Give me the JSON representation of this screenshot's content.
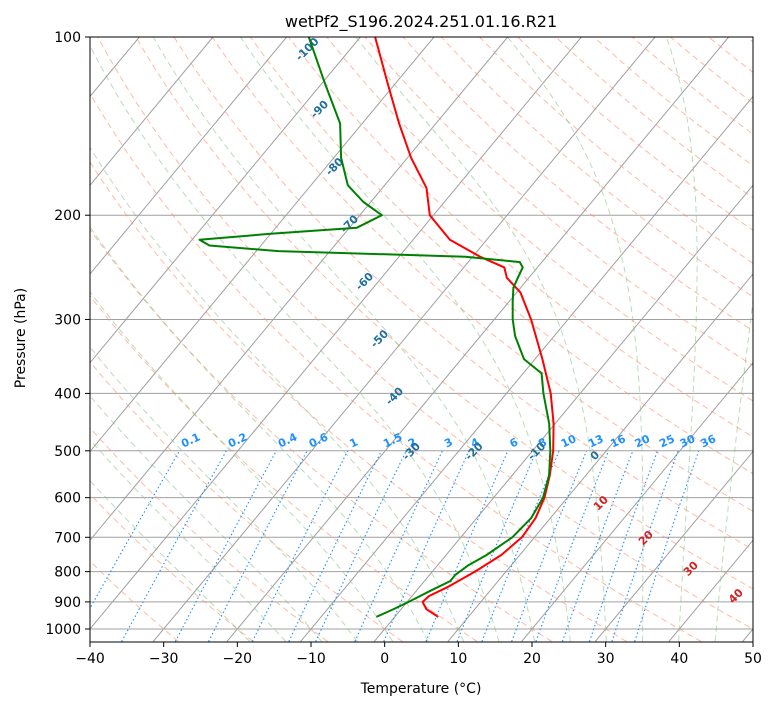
{
  "chart_data": {
    "type": "line",
    "diagram": "skew-t log-p",
    "title": "wetPf2_S196.2024.251.01.16.R21",
    "xlabel": "Temperature (°C)",
    "ylabel": "Pressure (hPa)",
    "xlim": [
      -40,
      50
    ],
    "ylim": [
      1050,
      100
    ],
    "y_scale": "log",
    "grid": true,
    "x_ticks": [
      -40,
      -30,
      -20,
      -10,
      0,
      10,
      20,
      30,
      40,
      50
    ],
    "y_ticks": [
      1000,
      900,
      800,
      700,
      600,
      500,
      400,
      300,
      200,
      100
    ],
    "colors": {
      "temperature": "#ff0000",
      "dewpoint": "#008000",
      "isotherms": "#a0a0a0",
      "dry_adiabats": "#ff8c69",
      "moist_adiabats": "#80c080",
      "mixing_ratio": "#1e90ff",
      "thetae_labels": "#1f6f9f",
      "thetaw_labels": "#d42020"
    },
    "series": [
      {
        "name": "",
        "role": "temperature",
        "points": [
          [
            954,
            5.9
          ],
          [
            925,
            3.4
          ],
          [
            900,
            2.1
          ],
          [
            880,
            2.3
          ],
          [
            850,
            3.8
          ],
          [
            800,
            5.8
          ],
          [
            750,
            7.5
          ],
          [
            700,
            8.3
          ],
          [
            650,
            8.0
          ],
          [
            600,
            6.9
          ],
          [
            550,
            5.1
          ],
          [
            500,
            2.8
          ],
          [
            450,
            -0.2
          ],
          [
            400,
            -4.0
          ],
          [
            350,
            -9.0
          ],
          [
            300,
            -15.0
          ],
          [
            270,
            -19.5
          ],
          [
            255,
            -23.0
          ],
          [
            245,
            -24.5
          ],
          [
            235,
            -29.0
          ],
          [
            220,
            -35.0
          ],
          [
            200,
            -40.5
          ],
          [
            180,
            -44.0
          ],
          [
            160,
            -49.5
          ],
          [
            140,
            -55.0
          ],
          [
            120,
            -61.0
          ],
          [
            100,
            -68.0
          ]
        ]
      },
      {
        "name": "",
        "role": "dewpoint",
        "points": [
          [
            954,
            -2.5
          ],
          [
            925,
            -1.0
          ],
          [
            900,
            0.2
          ],
          [
            860,
            2.0
          ],
          [
            830,
            3.5
          ],
          [
            810,
            3.5
          ],
          [
            780,
            4.2
          ],
          [
            750,
            5.5
          ],
          [
            700,
            7.0
          ],
          [
            650,
            7.4
          ],
          [
            600,
            6.7
          ],
          [
            550,
            5.0
          ],
          [
            500,
            2.4
          ],
          [
            450,
            -0.8
          ],
          [
            400,
            -5.0
          ],
          [
            370,
            -7.5
          ],
          [
            350,
            -11.5
          ],
          [
            320,
            -15.3
          ],
          [
            300,
            -17.5
          ],
          [
            280,
            -19.5
          ],
          [
            265,
            -21.0
          ],
          [
            255,
            -21.5
          ],
          [
            245,
            -22.0
          ],
          [
            240,
            -23.0
          ],
          [
            235,
            -31.0
          ],
          [
            230,
            -57.0
          ],
          [
            225,
            -67.0
          ],
          [
            220,
            -69.0
          ],
          [
            215,
            -60.0
          ],
          [
            210,
            -49.0
          ],
          [
            200,
            -47.0
          ],
          [
            190,
            -51.0
          ],
          [
            178,
            -55.0
          ],
          [
            160,
            -59.0
          ],
          [
            140,
            -63.0
          ],
          [
            120,
            -69.5
          ],
          [
            100,
            -77.0
          ]
        ]
      }
    ],
    "annotations": {
      "thetae_labels": [
        "-100",
        "-90",
        "-80",
        "-70",
        "-60",
        "-50",
        "-40",
        "-30",
        "-20",
        "-10",
        "0"
      ],
      "mixing_ratio_labels": [
        "0.1",
        "0.2",
        "0.4",
        "0.6",
        "1",
        "1.5",
        "2",
        "3",
        "4",
        "6",
        "8",
        "10",
        "13",
        "16",
        "20",
        "25",
        "30",
        "36"
      ],
      "thetaw_labels": [
        "10",
        "20",
        "30",
        "40"
      ]
    }
  }
}
